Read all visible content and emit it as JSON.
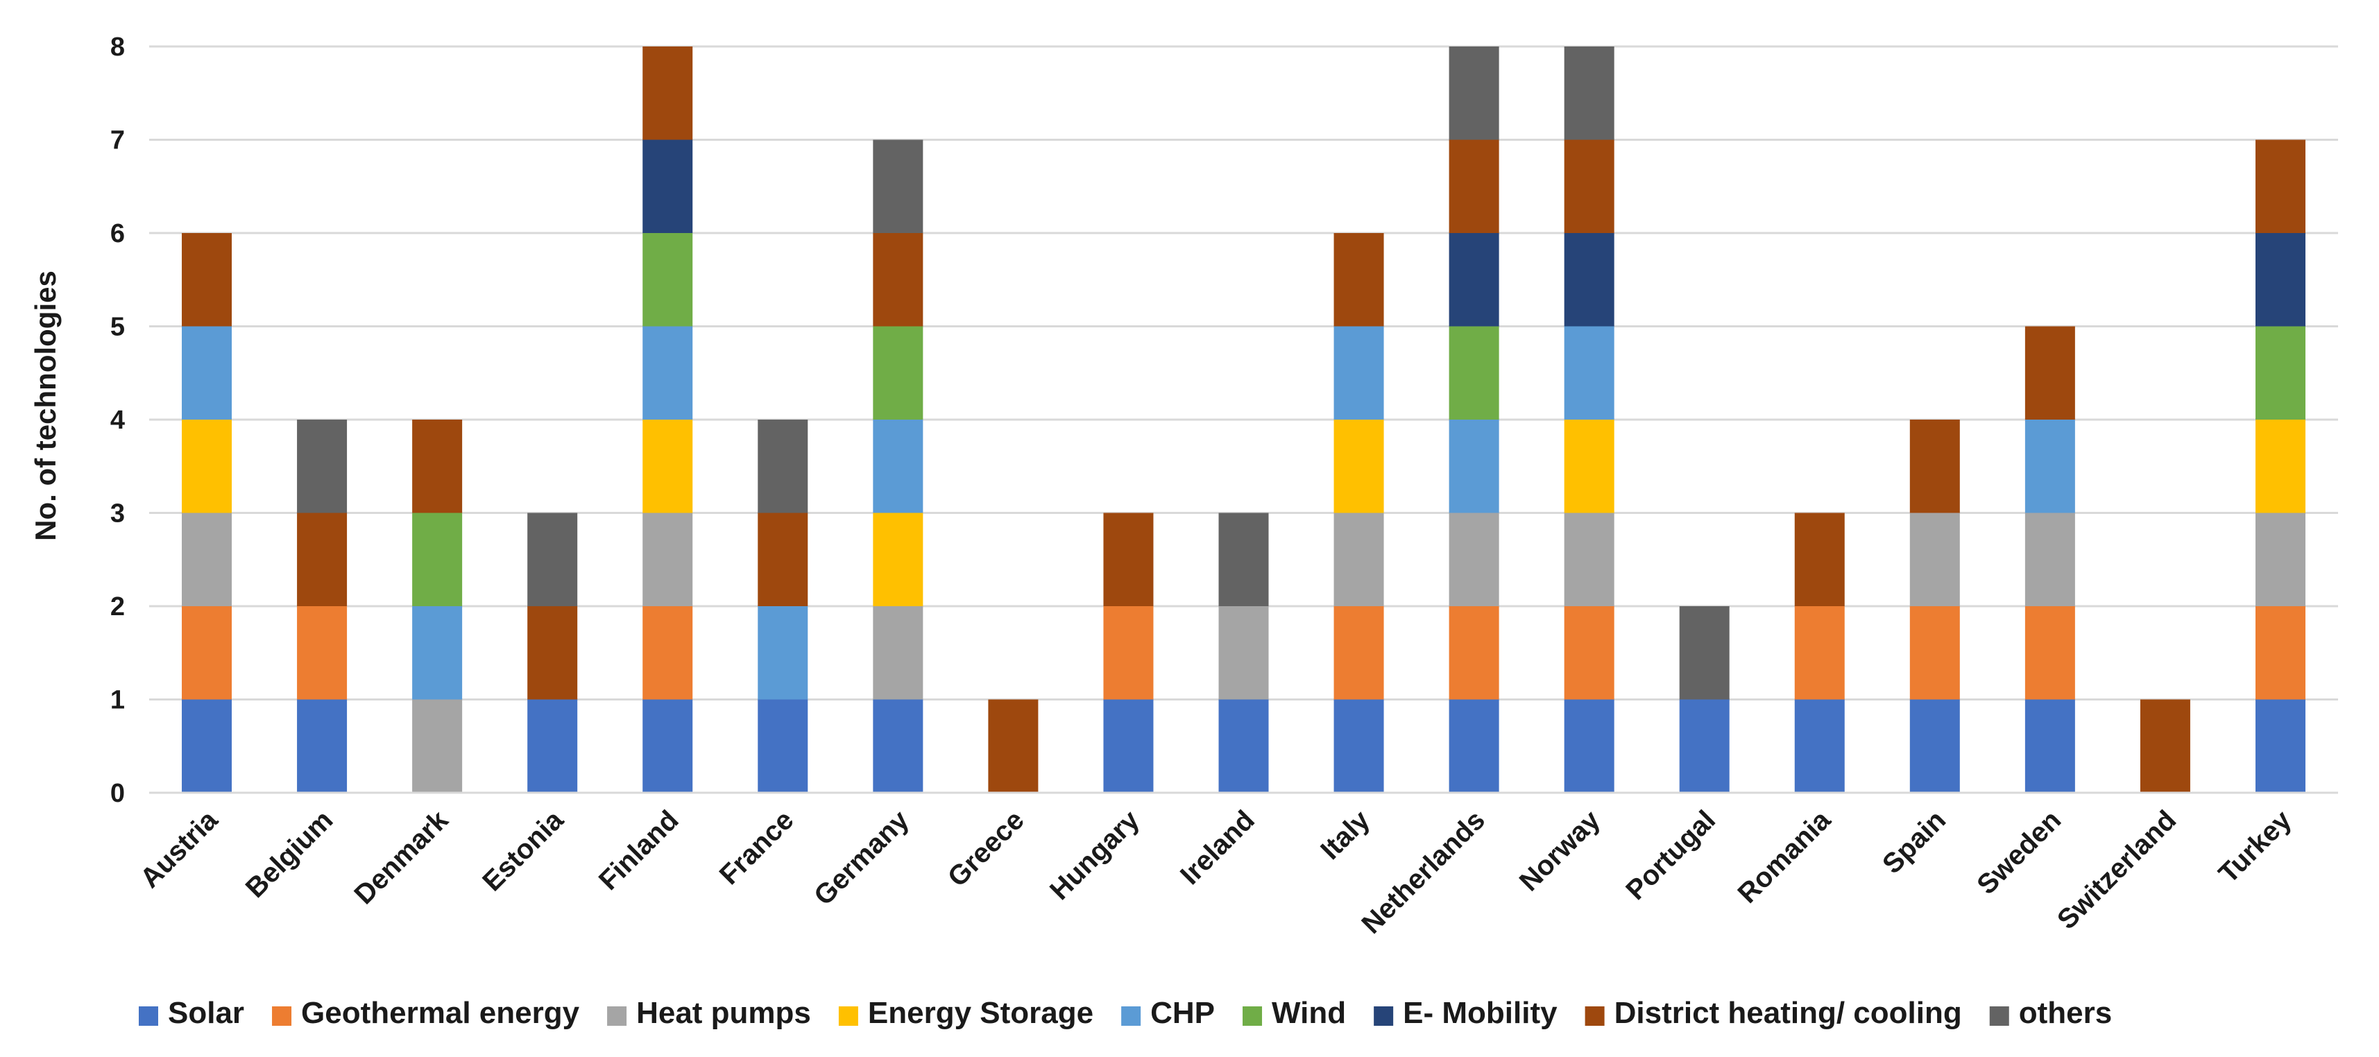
{
  "chart_data": {
    "type": "bar",
    "stacked": true,
    "title": "",
    "xlabel": "",
    "ylabel": "No. of technologies",
    "ylim": [
      0,
      8
    ],
    "yticks": [
      "0",
      "1",
      "2",
      "3",
      "4",
      "5",
      "6",
      "7",
      "8"
    ],
    "grid": true,
    "legend_position": "bottom",
    "categories": [
      "Austria",
      "Belgium",
      "Denmark",
      "Estonia",
      "Finland",
      "France",
      "Germany",
      "Greece",
      "Hungary",
      "Ireland",
      "Italy",
      "Netherlands",
      "Norway",
      "Portugal",
      "Romania",
      "Spain",
      "Sweden",
      "Switzerland",
      "Turkey"
    ],
    "series": [
      {
        "name": "Solar",
        "color": "#4472c4",
        "values": [
          1,
          1,
          0,
          1,
          1,
          1,
          1,
          0,
          1,
          1,
          1,
          1,
          1,
          1,
          1,
          1,
          1,
          0,
          1
        ]
      },
      {
        "name": "Geothermal energy",
        "color": "#ed7d31",
        "values": [
          1,
          1,
          0,
          0,
          1,
          0,
          0,
          0,
          1,
          0,
          1,
          1,
          1,
          0,
          1,
          1,
          1,
          0,
          1
        ]
      },
      {
        "name": "Heat pumps",
        "color": "#a5a5a5",
        "values": [
          1,
          0,
          1,
          0,
          1,
          0,
          1,
          0,
          0,
          1,
          1,
          1,
          1,
          0,
          0,
          1,
          1,
          0,
          1
        ]
      },
      {
        "name": "Energy Storage",
        "color": "#ffc000",
        "values": [
          1,
          0,
          0,
          0,
          1,
          0,
          1,
          0,
          0,
          0,
          1,
          0,
          1,
          0,
          0,
          0,
          0,
          0,
          1
        ]
      },
      {
        "name": "CHP",
        "color": "#5b9bd5",
        "values": [
          1,
          0,
          1,
          0,
          1,
          1,
          1,
          0,
          0,
          0,
          1,
          1,
          1,
          0,
          0,
          0,
          1,
          0,
          0
        ]
      },
      {
        "name": "Wind",
        "color": "#70ad47",
        "values": [
          0,
          0,
          1,
          0,
          1,
          0,
          1,
          0,
          0,
          0,
          0,
          1,
          0,
          0,
          0,
          0,
          0,
          0,
          1
        ]
      },
      {
        "name": "E- Mobility",
        "color": "#264478",
        "values": [
          0,
          0,
          0,
          0,
          1,
          0,
          0,
          0,
          0,
          0,
          0,
          1,
          1,
          0,
          0,
          0,
          0,
          0,
          1
        ]
      },
      {
        "name": "District heating/ cooling",
        "color": "#9e480e",
        "values": [
          1,
          1,
          1,
          1,
          1,
          1,
          1,
          1,
          1,
          0,
          1,
          1,
          1,
          0,
          1,
          1,
          1,
          1,
          1
        ]
      },
      {
        "name": "others",
        "color": "#636363",
        "values": [
          0,
          1,
          0,
          1,
          0,
          1,
          1,
          0,
          0,
          1,
          0,
          1,
          1,
          1,
          0,
          0,
          0,
          0,
          0
        ]
      }
    ]
  }
}
